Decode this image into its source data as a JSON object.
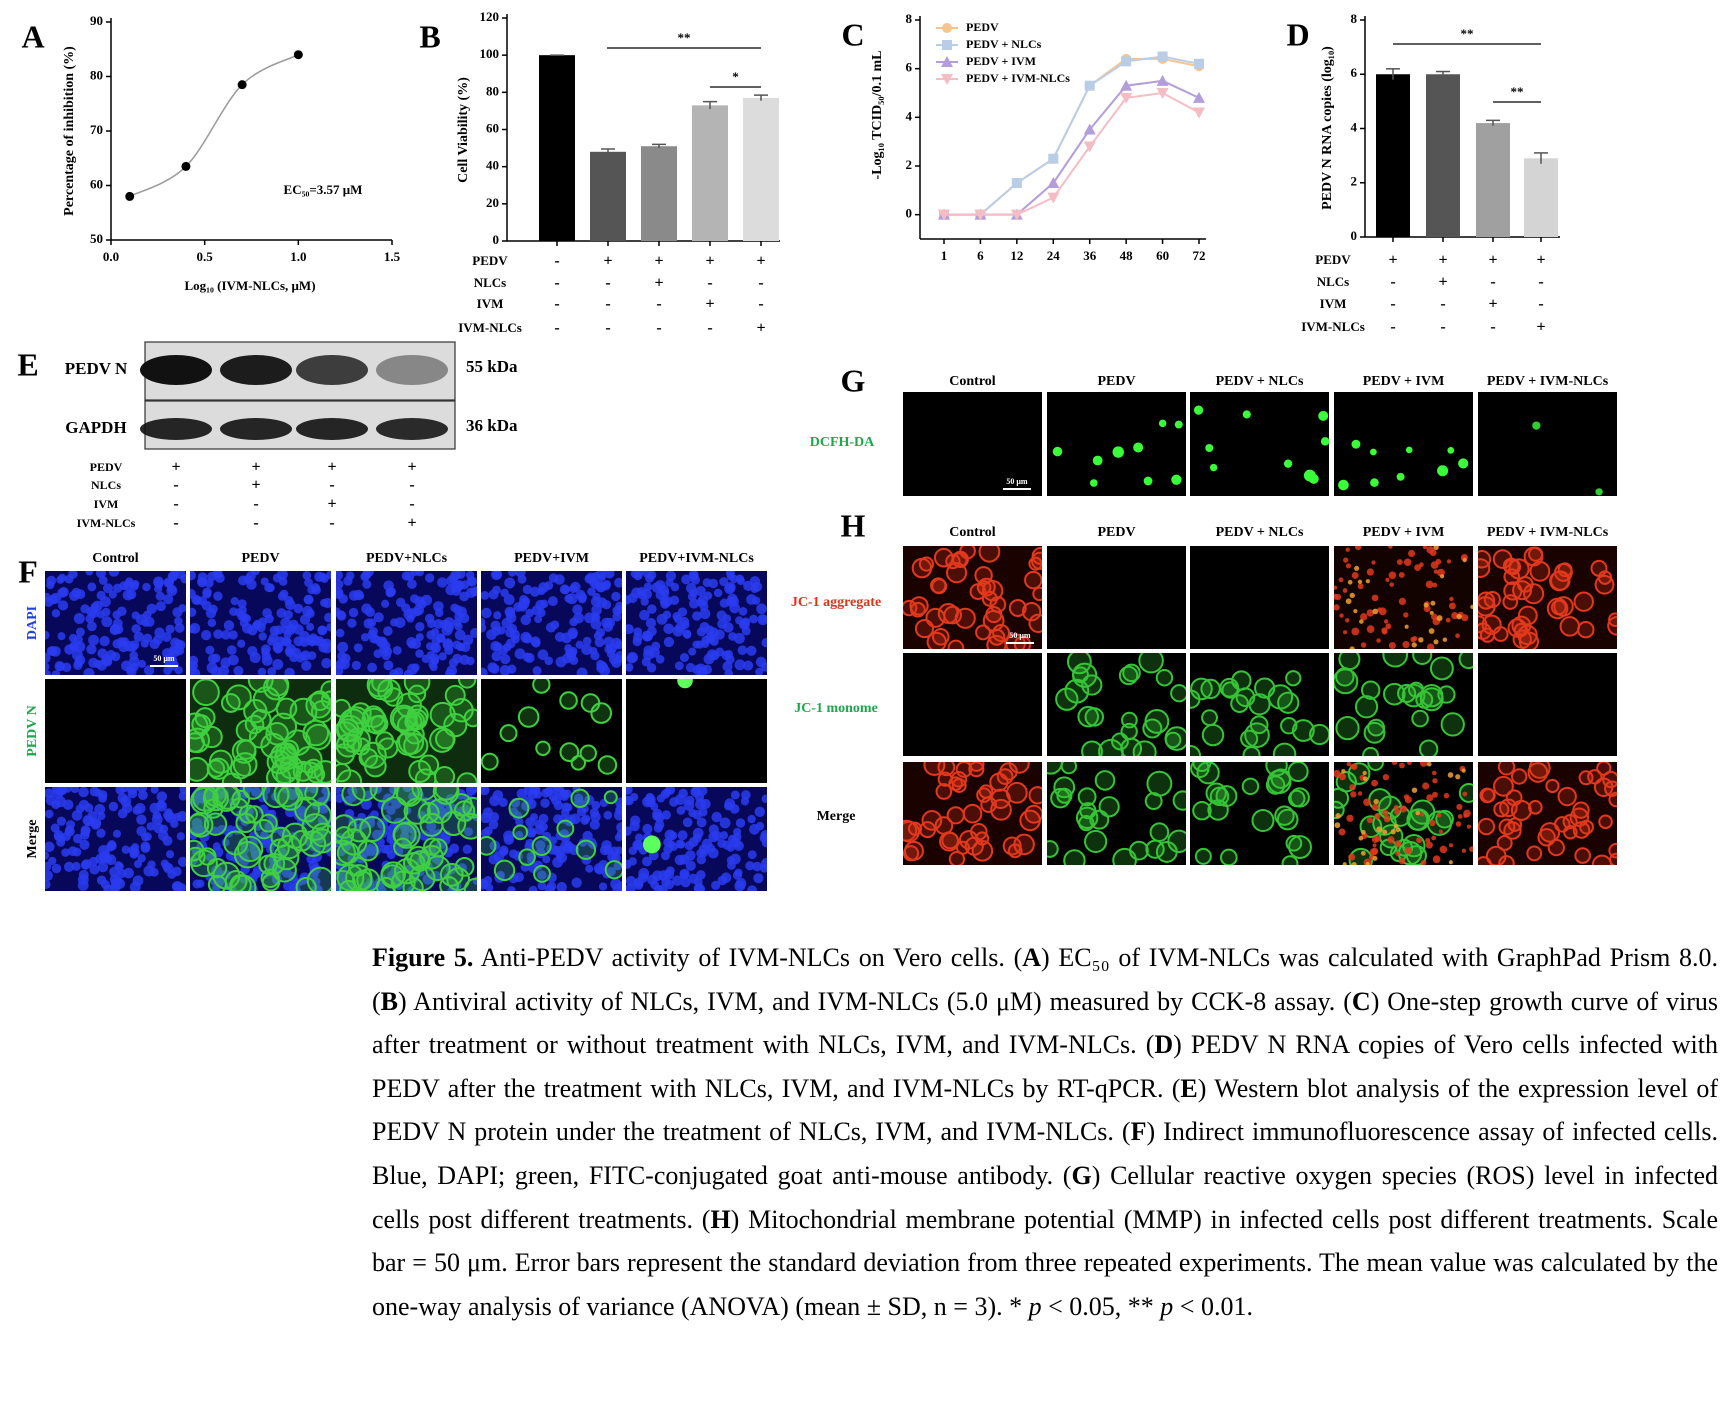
{
  "chart_data": [
    {
      "label": "A",
      "type": "line",
      "x": [
        0.1,
        0.4,
        0.7,
        1.0
      ],
      "values": [
        58,
        63.5,
        78.5,
        84
      ],
      "color": "#000000",
      "curve_color": "#9a9a9a",
      "xlim": [
        0,
        1.5
      ],
      "xticks": [
        {
          "value": 0,
          "label": "0.0"
        },
        0.5,
        {
          "value": 1,
          "label": "1.0"
        },
        1.5
      ],
      "ylim": [
        50,
        90
      ],
      "yticks": [
        50,
        60,
        70,
        80,
        90
      ],
      "x_label": "Log₁₀ (IVM-NLCs, μM)",
      "y_label": "Percentage of inhibition (%)",
      "annotation": "EC₅₀=3.57 μM"
    },
    {
      "label": "B",
      "type": "bar",
      "values": [
        100,
        48,
        51,
        73,
        77
      ],
      "errors": [
        0,
        1.5,
        1,
        2,
        1.5
      ],
      "colors": [
        "#000000",
        "#555555",
        "#8a8a8a",
        "#b4b4b4",
        "#dcdcdc"
      ],
      "ylim": [
        0,
        120
      ],
      "yticks": [
        0,
        20,
        40,
        60,
        80,
        100,
        120
      ],
      "y_label": "Cell Viability (%)",
      "treatments": [
        {
          "name": "PEDV",
          "signs": [
            "-",
            "+",
            "+",
            "+",
            "+"
          ]
        },
        {
          "name": "NLCs",
          "signs": [
            "-",
            "-",
            "+",
            "-",
            "-"
          ]
        },
        {
          "name": "IVM",
          "signs": [
            "-",
            "-",
            "-",
            "+",
            "-"
          ]
        },
        {
          "name": "IVM-NLCs",
          "signs": [
            "-",
            "-",
            "-",
            "-",
            "+"
          ]
        }
      ],
      "significance": [
        "**",
        "*"
      ]
    },
    {
      "label": "C",
      "type": "line",
      "categories": [
        "1",
        "6",
        "12",
        "24",
        "36",
        "48",
        "60",
        "72"
      ],
      "series": [
        {
          "name": "PEDV",
          "color": "#f7c48e",
          "values": [
            0,
            0,
            1.3,
            2.3,
            5.3,
            6.4,
            6.4,
            6.1
          ]
        },
        {
          "name": "PEDV + NLCs",
          "color": "#b9cde6",
          "values": [
            0,
            0,
            1.3,
            2.3,
            5.3,
            6.3,
            6.5,
            6.2
          ]
        },
        {
          "name": "PEDV + IVM",
          "color": "#b49ddb",
          "values": [
            0,
            0,
            0,
            1.3,
            3.5,
            5.3,
            5.5,
            4.8
          ]
        },
        {
          "name": "PEDV + IVM-NLCs",
          "color": "#f5bcc4",
          "values": [
            0,
            0,
            0,
            0.7,
            2.8,
            4.8,
            5.0,
            4.2
          ]
        }
      ],
      "ylim": [
        -1,
        8
      ],
      "yticks": [
        0,
        2,
        4,
        6,
        8
      ],
      "y_label": "-Log₁₀ TCID₅₀/0.1 mL"
    },
    {
      "label": "D",
      "type": "bar",
      "values": [
        6.0,
        6.0,
        4.2,
        2.9
      ],
      "errors": [
        0.2,
        0.1,
        0.1,
        0.2
      ],
      "colors": [
        "#000000",
        "#555555",
        "#a0a0a0",
        "#d4d4d4"
      ],
      "ylim": [
        0,
        8
      ],
      "yticks": [
        0,
        2,
        4,
        6,
        8
      ],
      "y_label": "PEDV N RNA copies (log₁₀)",
      "treatments": [
        {
          "name": "PEDV",
          "signs": [
            "+",
            "+",
            "+",
            "+"
          ]
        },
        {
          "name": "NLCs",
          "signs": [
            "-",
            "+",
            "-",
            "-"
          ]
        },
        {
          "name": "IVM",
          "signs": [
            "-",
            "-",
            "+",
            "-"
          ]
        },
        {
          "name": "IVM-NLCs",
          "signs": [
            "-",
            "-",
            "-",
            "+"
          ]
        }
      ],
      "significance": [
        "**",
        "**"
      ]
    }
  ],
  "panel_E": {
    "label": "E",
    "bands": [
      "PEDV N",
      "GAPDH"
    ],
    "sizes": [
      "55 kDa",
      "36 kDa"
    ],
    "treatments": [
      {
        "name": "PEDV",
        "signs": [
          "+",
          "+",
          "+",
          "+"
        ]
      },
      {
        "name": "NLCs",
        "signs": [
          "-",
          "+",
          "-",
          "-"
        ]
      },
      {
        "name": "IVM",
        "signs": [
          "-",
          "-",
          "+",
          "-"
        ]
      },
      {
        "name": "IVM-NLCs",
        "signs": [
          "-",
          "-",
          "-",
          "+"
        ]
      }
    ]
  },
  "panel_F": {
    "label": "F",
    "columns": [
      "Control",
      "PEDV",
      "PEDV+NLCs",
      "PEDV+IVM",
      "PEDV+IVM-NLCs"
    ],
    "rows": [
      "DAPI",
      "PEDV N",
      "Merge"
    ],
    "scale_bar": "50 μm"
  },
  "panel_G": {
    "label": "G",
    "columns": [
      "Control",
      "PEDV",
      "PEDV + NLCs",
      "PEDV + IVM",
      "PEDV + IVM-NLCs"
    ],
    "rows": [
      "DCFH-DA"
    ],
    "scale_bar": "50 μm"
  },
  "panel_H": {
    "label": "H",
    "columns": [
      "Control",
      "PEDV",
      "PEDV + NLCs",
      "PEDV + IVM",
      "PEDV + IVM-NLCs"
    ],
    "rows": [
      "JC-1 aggregate",
      "JC-1 monome",
      "Merge"
    ],
    "scale_bar": "50 μm"
  },
  "caption": {
    "parts": [
      "Figure 5.",
      " Anti-PEDV activity of IVM-NLCs on Vero cells. (",
      "A",
      ") EC₅₀ of IVM-NLCs was calculated with GraphPad Prism 8.0. (",
      "B",
      ") Antiviral activity of NLCs, IVM, and IVM-NLCs (5.0 μM) measured by CCK-8 assay. (",
      "C",
      ") One-step growth curve of virus after treatment or without treatment with NLCs, IVM, and IVM-NLCs. (",
      "D",
      ") PEDV N RNA copies of Vero cells infected with PEDV after the treatment with NLCs, IVM, and IVM-NLCs by RT-qPCR. (",
      "E",
      ") Western blot analysis of the expression level of PEDV N protein under the treatment of NLCs, IVM, and IVM-NLCs. (",
      "F",
      ") Indirect immunofluorescence assay of infected cells. Blue, DAPI; green, FITC-conjugated goat anti-mouse antibody. (",
      "G",
      ") Cellular reactive oxygen species (ROS) level in infected cells post different treatments. (",
      "H",
      ") Mitochondrial membrane potential (MMP) in infected cells post different treatments. Scale bar = 50 μm. Error bars represent the standard deviation from three repeated experiments. The mean value was calculated by the one-way analysis of variance (ANOVA) (mean ± SD, n = 3). * ",
      "p",
      " < 0.05, ** ",
      "p",
      " < 0.01."
    ]
  }
}
